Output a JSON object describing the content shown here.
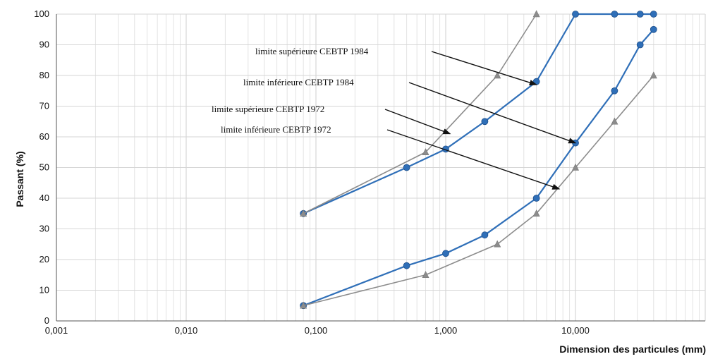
{
  "chart_data": {
    "type": "line",
    "title": "",
    "xlabel": "Dimension des particules (mm)",
    "ylabel": "Passant (%)",
    "x_scale": "log",
    "xlim": [
      0.001,
      100
    ],
    "ylim": [
      0,
      100
    ],
    "x_ticks": [
      0.001,
      0.01,
      0.1,
      1,
      10
    ],
    "x_tick_labels": [
      "0,001",
      "0,010",
      "0,100",
      "1,000",
      "10,000"
    ],
    "y_ticks": [
      0,
      10,
      20,
      30,
      40,
      50,
      60,
      70,
      80,
      90,
      100
    ],
    "y_tick_labels": [
      "0",
      "10",
      "20",
      "30",
      "40",
      "50",
      "60",
      "70",
      "80",
      "90",
      "100"
    ],
    "grid": true,
    "series": [
      {
        "name": "limite supérieure CEBTP 1984",
        "color": "#2f6fb8",
        "marker": "circle",
        "x": [
          0.08,
          0.5,
          1,
          2,
          5,
          10,
          20,
          31.5,
          40
        ],
        "y": [
          35,
          50,
          56,
          65,
          78,
          100,
          100,
          100,
          100
        ]
      },
      {
        "name": "limite inférieure CEBTP 1984",
        "color": "#2f6fb8",
        "marker": "circle",
        "x": [
          0.08,
          0.5,
          1,
          2,
          5,
          10,
          20,
          31.5,
          40
        ],
        "y": [
          5,
          18,
          22,
          28,
          40,
          58,
          75,
          90,
          95
        ]
      },
      {
        "name": "limite supérieure CEBTP 1972",
        "color": "#8c8c8c",
        "marker": "triangle",
        "x": [
          0.08,
          0.7,
          2.5,
          5
        ],
        "y": [
          35,
          55,
          80,
          100
        ]
      },
      {
        "name": "limite inférieure CEBTP 1972",
        "color": "#8c8c8c",
        "marker": "triangle",
        "x": [
          0.08,
          0.7,
          2.5,
          5,
          10,
          20,
          40
        ],
        "y": [
          5,
          15,
          25,
          35,
          50,
          65,
          80
        ]
      }
    ],
    "annotations": [
      {
        "text": "limite supérieure CEBTP 1984",
        "target_x": 5,
        "target_y": 77
      },
      {
        "text": "limite inférieure CEBTP 1984",
        "target_x": 10,
        "target_y": 58
      },
      {
        "text": "limite supérieure CEBTP 1972",
        "target_x": 1.08,
        "target_y": 61
      },
      {
        "text": "limite inférieure CEBTP 1972",
        "target_x": 7.5,
        "target_y": 43
      }
    ]
  }
}
